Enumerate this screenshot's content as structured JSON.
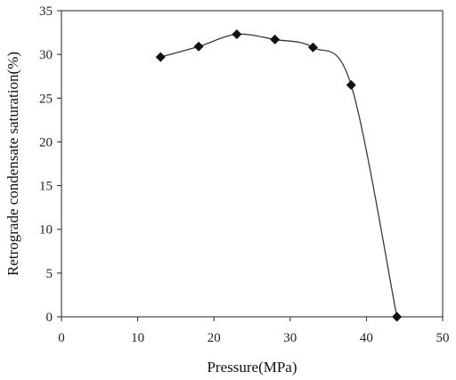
{
  "chart_data": {
    "type": "scatter",
    "title": "",
    "xlabel": "Pressure(MPa)",
    "ylabel": "Retrograde condensate saturation(%)",
    "xlim": [
      0,
      50
    ],
    "ylim": [
      0,
      35
    ],
    "xticks": [
      "0",
      "10",
      "20",
      "30",
      "40",
      "50"
    ],
    "yticks": [
      "0",
      "5",
      "10",
      "15",
      "20",
      "25",
      "30",
      "35"
    ],
    "grid": false,
    "legend": "none",
    "marker": "diamond",
    "line_style": "smoothed",
    "line_color": "#3a3a3a",
    "marker_color": "#111111",
    "series": [
      {
        "x": [
          13,
          18,
          23,
          28,
          33,
          38,
          44
        ],
        "y": [
          29.7,
          30.9,
          32.3,
          31.7,
          30.8,
          26.5,
          0
        ]
      }
    ]
  }
}
